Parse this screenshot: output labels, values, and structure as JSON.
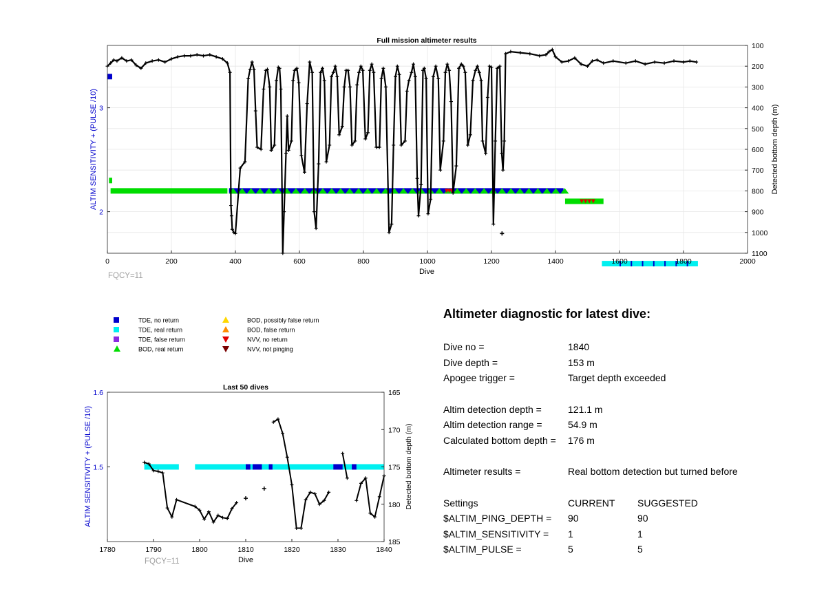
{
  "colors": {
    "tde_no_return": "#0000cc",
    "tde_real_return": "#00f0f0",
    "tde_false_return": "#8a2be2",
    "bod_real_return": "#00dd00",
    "bod_possibly_false_return": "#ffd700",
    "bod_false_return": "#ff8c00",
    "nvv_no_return": "#e00000",
    "nvv_not_pinging": "#7a0000",
    "depth_line": "#000000",
    "left_axis_label": "#0000cc",
    "fqcy_label": "#a0a0a0",
    "grid": "#e6e6e6"
  },
  "legend": [
    {
      "label": "TDE, no return",
      "marker": "square",
      "color_key": "tde_no_return"
    },
    {
      "label": "TDE, real return",
      "marker": "square",
      "color_key": "tde_real_return"
    },
    {
      "label": "TDE, false return",
      "marker": "square",
      "color_key": "tde_false_return"
    },
    {
      "label": "BOD, real return",
      "marker": "triangle-up",
      "color_key": "bod_real_return"
    },
    {
      "label": "BOD, possibly false return",
      "marker": "triangle-up",
      "color_key": "bod_possibly_false_return"
    },
    {
      "label": "BOD, false return",
      "marker": "triangle-up",
      "color_key": "bod_false_return"
    },
    {
      "label": "NVV, no return",
      "marker": "triangle-down",
      "color_key": "nvv_no_return"
    },
    {
      "label": "NVV, not pinging",
      "marker": "triangle-down",
      "color_key": "nvv_not_pinging"
    }
  ],
  "chart_data": [
    {
      "type": "scatter",
      "title": "Full mission altimeter results",
      "xlabel": "Dive",
      "ylabel_left": "ALTIM SENSITIVITY + (PULSE /10)",
      "ylabel_right": "Detected bottom depth (m)",
      "xlim": [
        0,
        2000
      ],
      "xticks": [
        0,
        200,
        400,
        600,
        800,
        1000,
        1200,
        1400,
        1600,
        1800,
        2000
      ],
      "ylim_left": [
        1.6,
        3.6
      ],
      "yticks_left": [
        2,
        3
      ],
      "ylim_right_reversed": [
        100,
        1100
      ],
      "yticks_right": [
        100,
        200,
        300,
        400,
        500,
        600,
        700,
        800,
        900,
        1000,
        1100
      ],
      "annotation": "FQCY=11",
      "grid": true,
      "depth_series": {
        "name": "Detected bottom depth",
        "points": [
          [
            0,
            200
          ],
          [
            10,
            185
          ],
          [
            20,
            170
          ],
          [
            30,
            175
          ],
          [
            45,
            160
          ],
          [
            60,
            175
          ],
          [
            75,
            170
          ],
          [
            90,
            195
          ],
          [
            105,
            210
          ],
          [
            120,
            185
          ],
          [
            140,
            175
          ],
          [
            160,
            170
          ],
          [
            180,
            180
          ],
          [
            200,
            165
          ],
          [
            220,
            155
          ],
          [
            240,
            150
          ],
          [
            260,
            150
          ],
          [
            280,
            145
          ],
          [
            300,
            150
          ],
          [
            320,
            145
          ],
          [
            340,
            155
          ],
          [
            360,
            165
          ],
          [
            375,
            185
          ],
          [
            383,
            230
          ],
          [
            386,
            870
          ],
          [
            388,
            920
          ],
          [
            390,
            985
          ],
          [
            395,
            1000
          ],
          [
            400,
            1005
          ],
          [
            415,
            690
          ],
          [
            430,
            660
          ],
          [
            440,
            260
          ],
          [
            446,
            215
          ],
          [
            452,
            180
          ],
          [
            458,
            215
          ],
          [
            463,
            415
          ],
          [
            468,
            590
          ],
          [
            480,
            600
          ],
          [
            488,
            310
          ],
          [
            495,
            220
          ],
          [
            500,
            215
          ],
          [
            507,
            300
          ],
          [
            512,
            605
          ],
          [
            522,
            580
          ],
          [
            528,
            270
          ],
          [
            534,
            205
          ],
          [
            538,
            210
          ],
          [
            542,
            310
          ],
          [
            548,
            1100
          ],
          [
            552,
            900
          ],
          [
            558,
            620
          ],
          [
            562,
            440
          ],
          [
            566,
            605
          ],
          [
            575,
            560
          ],
          [
            580,
            270
          ],
          [
            585,
            220
          ],
          [
            592,
            210
          ],
          [
            598,
            280
          ],
          [
            606,
            630
          ],
          [
            616,
            710
          ],
          [
            624,
            380
          ],
          [
            632,
            180
          ],
          [
            640,
            230
          ],
          [
            646,
            900
          ],
          [
            652,
            980
          ],
          [
            660,
            670
          ],
          [
            666,
            230
          ],
          [
            672,
            210
          ],
          [
            678,
            270
          ],
          [
            684,
            660
          ],
          [
            694,
            580
          ],
          [
            700,
            250
          ],
          [
            706,
            230
          ],
          [
            712,
            200
          ],
          [
            718,
            250
          ],
          [
            724,
            530
          ],
          [
            734,
            490
          ],
          [
            740,
            300
          ],
          [
            746,
            220
          ],
          [
            752,
            220
          ],
          [
            758,
            300
          ],
          [
            764,
            580
          ],
          [
            774,
            560
          ],
          [
            780,
            290
          ],
          [
            786,
            230
          ],
          [
            792,
            200
          ],
          [
            798,
            220
          ],
          [
            806,
            550
          ],
          [
            814,
            520
          ],
          [
            820,
            220
          ],
          [
            826,
            190
          ],
          [
            832,
            230
          ],
          [
            840,
            590
          ],
          [
            850,
            590
          ],
          [
            856,
            260
          ],
          [
            862,
            210
          ],
          [
            870,
            300
          ],
          [
            880,
            1000
          ],
          [
            888,
            960
          ],
          [
            894,
            580
          ],
          [
            900,
            250
          ],
          [
            906,
            200
          ],
          [
            912,
            240
          ],
          [
            918,
            580
          ],
          [
            930,
            560
          ],
          [
            936,
            320
          ],
          [
            942,
            270
          ],
          [
            950,
            230
          ],
          [
            956,
            190
          ],
          [
            962,
            250
          ],
          [
            968,
            740
          ],
          [
            972,
            920
          ],
          [
            980,
            770
          ],
          [
            986,
            220
          ],
          [
            990,
            210
          ],
          [
            996,
            260
          ],
          [
            1002,
            910
          ],
          [
            1010,
            840
          ],
          [
            1018,
            250
          ],
          [
            1026,
            200
          ],
          [
            1034,
            260
          ],
          [
            1040,
            700
          ],
          [
            1050,
            560
          ],
          [
            1056,
            230
          ],
          [
            1062,
            190
          ],
          [
            1068,
            220
          ],
          [
            1074,
            370
          ],
          [
            1080,
            810
          ],
          [
            1090,
            680
          ],
          [
            1098,
            210
          ],
          [
            1106,
            190
          ],
          [
            1112,
            200
          ],
          [
            1118,
            230
          ],
          [
            1126,
            580
          ],
          [
            1134,
            530
          ],
          [
            1142,
            270
          ],
          [
            1150,
            220
          ],
          [
            1156,
            200
          ],
          [
            1162,
            230
          ],
          [
            1168,
            270
          ],
          [
            1172,
            560
          ],
          [
            1182,
            620
          ],
          [
            1188,
            350
          ],
          [
            1194,
            200
          ],
          [
            1200,
            205
          ],
          [
            1206,
            960
          ],
          [
            1212,
            560
          ],
          [
            1218,
            210
          ],
          [
            1226,
            200
          ],
          [
            1232,
            620
          ],
          [
            1236,
            700
          ],
          [
            1240,
            560
          ],
          [
            1244,
            140
          ],
          [
            1260,
            130
          ],
          [
            1290,
            135
          ],
          [
            1320,
            140
          ],
          [
            1350,
            150
          ],
          [
            1370,
            145
          ],
          [
            1380,
            130
          ],
          [
            1390,
            120
          ],
          [
            1400,
            155
          ],
          [
            1420,
            180
          ],
          [
            1440,
            175
          ],
          [
            1460,
            160
          ],
          [
            1480,
            190
          ],
          [
            1500,
            200
          ],
          [
            1515,
            175
          ],
          [
            1530,
            170
          ],
          [
            1550,
            185
          ],
          [
            1580,
            175
          ],
          [
            1620,
            185
          ],
          [
            1650,
            175
          ],
          [
            1680,
            190
          ],
          [
            1710,
            180
          ],
          [
            1740,
            185
          ],
          [
            1770,
            175
          ],
          [
            1800,
            180
          ],
          [
            1820,
            175
          ],
          [
            1840,
            180
          ]
        ],
        "isolated_points": [
          [
            1233,
            1005
          ]
        ]
      },
      "status_bands": [
        {
          "x": [
            0,
            15
          ],
          "y": 3.3,
          "color_key": "tde_no_return"
        },
        {
          "x": [
            5,
            15
          ],
          "y": 2.3,
          "color_key": "bod_real_return"
        },
        {
          "x": [
            10,
            375
          ],
          "y": 2.2,
          "color_key": "bod_real_return"
        },
        {
          "x": [
            380,
            1425
          ],
          "y": 2.2,
          "color_key": "tde_no_return"
        },
        {
          "x": [
            1430,
            1550
          ],
          "y": 2.1,
          "color_key": "bod_real_return"
        },
        {
          "x": [
            1545,
            1845
          ],
          "y": 1.5,
          "color_key": "tde_real_return"
        }
      ]
    },
    {
      "type": "scatter",
      "title": "Last 50 dives",
      "xlabel": "Dive",
      "ylabel_left": "ALTIM SENSITIVITY + (PULSE /10)",
      "ylabel_right": "Detected bottom depth (m)",
      "xlim": [
        1780,
        1840
      ],
      "xticks": [
        1780,
        1790,
        1800,
        1810,
        1820,
        1830,
        1840
      ],
      "ylim_left": [
        1.4,
        1.6
      ],
      "yticks_left": [
        1.5,
        1.6
      ],
      "ylim_right_reversed": [
        165,
        185
      ],
      "yticks_right": [
        165,
        170,
        175,
        180,
        185
      ],
      "annotation": "FQCY=11",
      "grid": false,
      "depth_segments": [
        [
          [
            1788,
            174.4
          ],
          [
            1789,
            174.6
          ],
          [
            1790,
            175.5
          ],
          [
            1791,
            175.6
          ],
          [
            1792,
            175.8
          ],
          [
            1793,
            180.5
          ],
          [
            1794,
            181.7
          ],
          [
            1795,
            179.4
          ],
          [
            1799,
            180.3
          ],
          [
            1800,
            180.8
          ],
          [
            1801,
            182.0
          ],
          [
            1802,
            181.0
          ],
          [
            1803,
            182.4
          ],
          [
            1804,
            181.5
          ],
          [
            1805,
            181.8
          ],
          [
            1806,
            181.9
          ],
          [
            1807,
            180.6
          ],
          [
            1808,
            179.8
          ]
        ],
        [
          [
            1816,
            169.0
          ],
          [
            1817,
            168.6
          ],
          [
            1818,
            170.5
          ],
          [
            1819,
            173.7
          ],
          [
            1820,
            177.4
          ],
          [
            1821,
            183.2
          ],
          [
            1822,
            183.2
          ],
          [
            1823,
            179.4
          ],
          [
            1824,
            178.4
          ],
          [
            1825,
            178.6
          ],
          [
            1826,
            180.0
          ],
          [
            1827,
            179.5
          ],
          [
            1828,
            178.4
          ]
        ],
        [
          [
            1831,
            173.2
          ],
          [
            1832,
            176.5
          ]
        ],
        [
          [
            1834,
            179.5
          ],
          [
            1835,
            177.2
          ],
          [
            1836,
            176.5
          ],
          [
            1837,
            181.2
          ],
          [
            1838,
            181.7
          ],
          [
            1839,
            179.0
          ],
          [
            1840,
            176.2
          ]
        ]
      ],
      "isolated_points": [
        [
          1810,
          179.2
        ],
        [
          1814,
          177.9
        ]
      ],
      "status_band": {
        "y": 1.5,
        "x": [
          1788,
          1840
        ],
        "color_key": "tde_real_return",
        "no_return_segments": [
          [
            1795.5,
            1799
          ],
          [
            1810,
            1811
          ],
          [
            1811.5,
            1813.5
          ],
          [
            1815,
            1815.8
          ],
          [
            1829,
            1831
          ],
          [
            1833,
            1834
          ]
        ]
      }
    }
  ],
  "diagnostic": {
    "title": "Altimeter diagnostic for latest dive:",
    "dive_no_label": "Dive no =",
    "dive_no_value": "1840",
    "dive_depth_label": "Dive depth =",
    "dive_depth_value": "153 m",
    "apogee_label": "Apogee trigger =",
    "apogee_value": "Target depth exceeded",
    "detect_depth_label": "Altim detection depth =",
    "detect_depth_value": "121.1 m",
    "detect_range_label": "Altim detection range =",
    "detect_range_value": "54.9 m",
    "calc_bottom_label": "Calculated bottom depth =",
    "calc_bottom_value": "176 m",
    "results_label": "Altimeter results =",
    "results_value": "Real bottom detection but turned before",
    "settings_header": "Settings",
    "current_header": "CURRENT",
    "suggested_header": "SUGGESTED",
    "settings": [
      {
        "name": "$ALTIM_PING_DEPTH =",
        "current": "90",
        "suggested": "90"
      },
      {
        "name": "$ALTIM_SENSITIVITY =",
        "current": "1",
        "suggested": "1"
      },
      {
        "name": "$ALTIM_PULSE =",
        "current": "5",
        "suggested": "5"
      }
    ]
  }
}
